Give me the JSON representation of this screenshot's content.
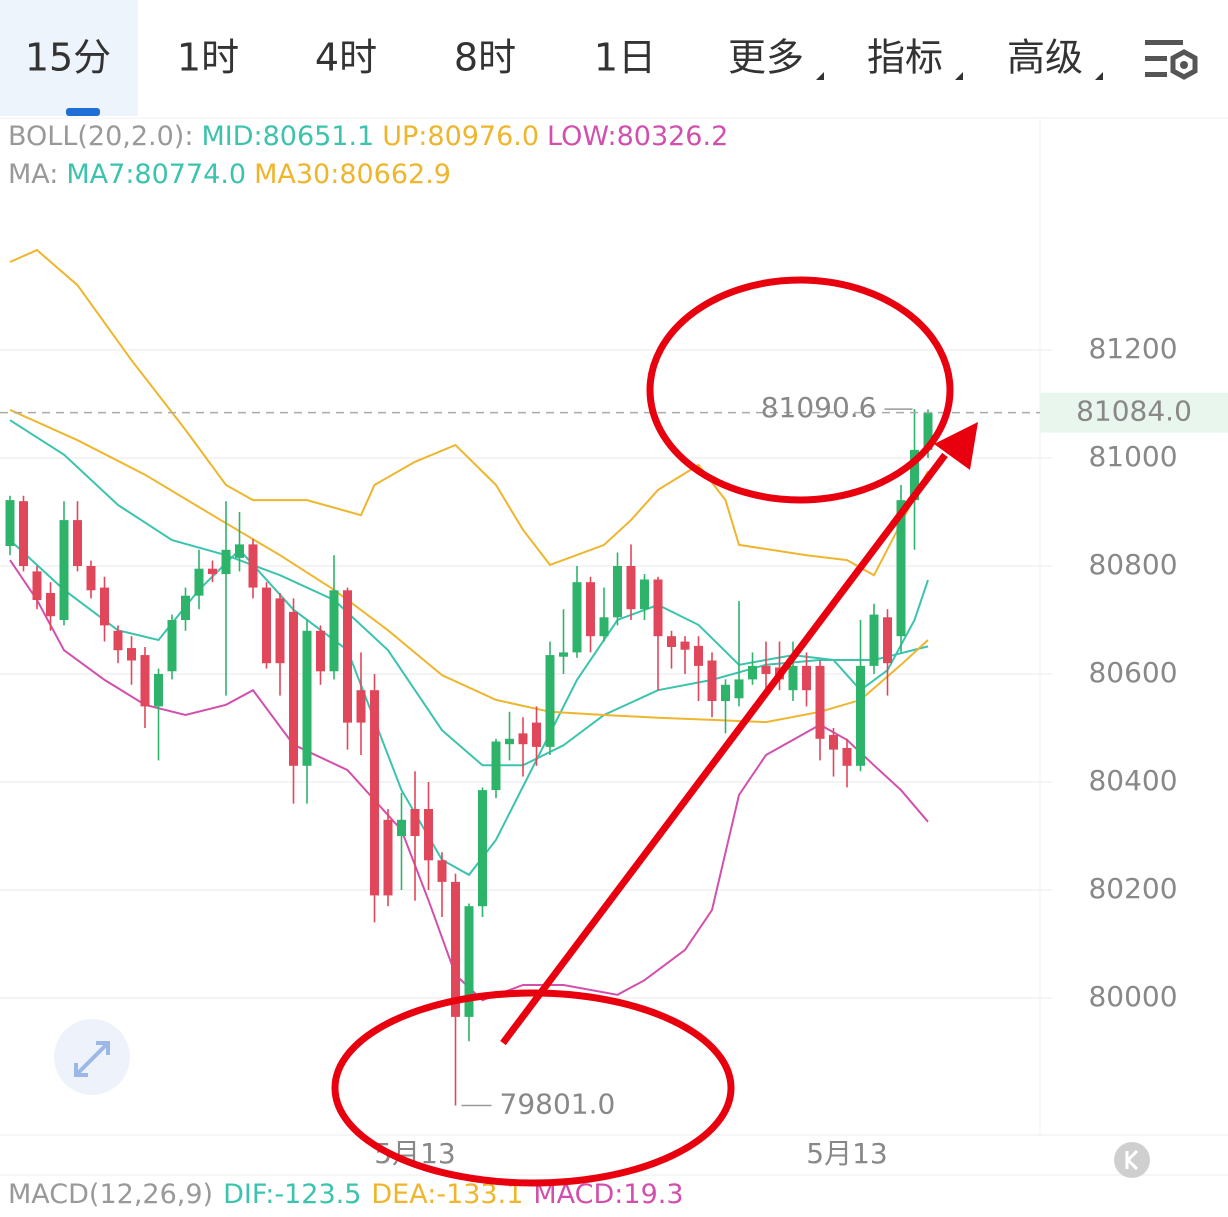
{
  "tabs": [
    "15分",
    "1时",
    "4时",
    "8时",
    "1日",
    "更多",
    "指标",
    "高级"
  ],
  "macd": {
    "label": "MACD(12,26,9)",
    "dif": "DIF:-123.5",
    "dea": "DEA:-133.1",
    "macd": "MACD:19.3"
  },
  "chart_data": {
    "type": "candlestick",
    "boll_label": "BOLL(20,2.0):",
    "ma_label": "MA:",
    "up_color": "#2db46a",
    "down_color": "#e0475a",
    "categories": [
      null,
      null,
      null,
      null,
      null,
      null,
      null,
      null,
      null,
      null,
      null,
      null,
      null,
      null,
      null,
      null,
      null,
      null,
      null,
      null,
      null,
      null,
      null,
      null,
      null,
      null,
      null,
      null,
      null,
      null,
      "5月13",
      null,
      null,
      null,
      null,
      null,
      null,
      null,
      null,
      null,
      null,
      null,
      null,
      null,
      null,
      null,
      null,
      null,
      null,
      null,
      null,
      null,
      null,
      null,
      null,
      null,
      null,
      null,
      null,
      null,
      null,
      null,
      "5月13",
      null,
      null,
      null,
      null,
      null,
      null
    ],
    "open": [
      80837,
      80920,
      80790,
      80750,
      80700,
      80885,
      80800,
      80760,
      80680,
      80648,
      80635,
      80540,
      80605,
      80700,
      80745,
      80795,
      80785,
      80815,
      80840,
      80760,
      80740,
      80715,
      80430,
      80680,
      80605,
      80755,
      80570,
      80570,
      80330,
      80300,
      80350,
      80350,
      80255,
      80215,
      79965,
      80170,
      80385,
      80470,
      80490,
      80510,
      80465,
      80632,
      80640,
      80770,
      80670,
      80705,
      80800,
      80720,
      80775,
      80670,
      80660,
      80652,
      80625,
      80550,
      80555,
      80590,
      80615,
      80612,
      80570,
      80615,
      80615,
      80487,
      80463,
      80430,
      80615,
      80705,
      80670,
      80922,
      81015
    ],
    "high": [
      80930,
      80930,
      80800,
      80770,
      80920,
      80920,
      80810,
      80780,
      80690,
      80670,
      80650,
      80610,
      80710,
      80760,
      80830,
      80810,
      80920,
      80900,
      80850,
      80770,
      80750,
      80740,
      80700,
      80690,
      80820,
      80760,
      80640,
      80600,
      80350,
      80380,
      80420,
      80400,
      80270,
      80230,
      80175,
      80390,
      80480,
      80530,
      80520,
      80540,
      80660,
      80720,
      80800,
      80780,
      80760,
      80825,
      80840,
      80785,
      80780,
      80680,
      80670,
      80670,
      80640,
      80590,
      80735,
      80640,
      80660,
      80660,
      80660,
      80640,
      80625,
      80500,
      80480,
      80700,
      80730,
      80720,
      80950,
      81090.6,
      81090
    ],
    "low": [
      80820,
      80790,
      80720,
      80680,
      80690,
      80790,
      80740,
      80660,
      80620,
      80580,
      80500,
      80440,
      80590,
      80680,
      80720,
      80770,
      80560,
      80790,
      80740,
      80610,
      80560,
      80360,
      80360,
      80580,
      80590,
      80460,
      80450,
      80140,
      80170,
      80200,
      80180,
      80200,
      80150,
      79801,
      79920,
      80150,
      80370,
      80440,
      80410,
      80430,
      80450,
      80600,
      80630,
      80640,
      80660,
      80690,
      80700,
      80700,
      80570,
      80610,
      80600,
      80550,
      80520,
      80490,
      80540,
      80580,
      80570,
      80570,
      80550,
      80540,
      80440,
      80410,
      80390,
      80420,
      80600,
      80560,
      80640,
      80830,
      81000
    ],
    "close": [
      80922,
      80800,
      80737,
      80707,
      80885,
      80800,
      80755,
      80690,
      80644,
      80625,
      80540,
      80600,
      80700,
      80745,
      80795,
      80785,
      80830,
      80840,
      80760,
      80620,
      80620,
      80430,
      80680,
      80605,
      80755,
      80510,
      80510,
      80190,
      80190,
      80330,
      80300,
      80255,
      80215,
      79965,
      80170,
      80385,
      80475,
      80480,
      80470,
      80465,
      80635,
      80640,
      80770,
      80670,
      80705,
      80800,
      80720,
      80775,
      80670,
      80650,
      80645,
      80615,
      80550,
      80580,
      80590,
      80615,
      80600,
      80590,
      80615,
      80570,
      80480,
      80460,
      80430,
      80615,
      80710,
      80620,
      80922,
      81015,
      81084
    ],
    "lines": [
      {
        "label": "MID:80651.1",
        "color": "#3cc3ad",
        "group": "boll",
        "x": [
          0,
          4,
          8,
          12,
          16,
          20,
          24,
          28,
          32,
          35,
          38,
          41,
          44,
          48,
          52,
          56,
          60,
          64,
          68
        ],
        "values": [
          81070,
          81006,
          80913,
          80848,
          80820,
          80783,
          80737,
          80644,
          80496,
          80431,
          80431,
          80468,
          80524,
          80570,
          80589,
          80617,
          80626,
          80626,
          80651.1
        ]
      },
      {
        "label": "UP:80976.0",
        "color": "#efb52c",
        "group": "boll",
        "x": [
          0,
          2,
          5,
          9,
          13,
          16,
          18,
          22,
          26,
          27,
          30,
          33,
          36,
          38,
          40,
          44,
          46,
          48,
          51,
          53,
          54,
          59,
          62,
          64,
          68
        ],
        "values": [
          81363,
          81385,
          81320,
          81181,
          81052,
          80950,
          80922,
          80922,
          80894,
          80950,
          80993,
          81024,
          80950,
          80867,
          80802,
          80839,
          80885,
          80941,
          80987,
          80922,
          80839,
          80820,
          80811,
          80783,
          80976
        ]
      },
      {
        "label": "LOW:80326.2",
        "color": "#d24fae",
        "group": "boll",
        "x": [
          0,
          2,
          4,
          7,
          10,
          13,
          16,
          18,
          21,
          25,
          29,
          31,
          33,
          35,
          38,
          41,
          45,
          47,
          50,
          52,
          54,
          56,
          58,
          60,
          62,
          64,
          66,
          68
        ],
        "values": [
          80811,
          80737,
          80644,
          80589,
          80543,
          80524,
          80543,
          80570,
          80469,
          80422,
          80311,
          80181,
          80043,
          79996,
          80024,
          80024,
          80006,
          80033,
          80089,
          80163,
          80376,
          80450,
          80478,
          80506,
          80478,
          80431,
          80385,
          80326.2
        ]
      },
      {
        "label": "MA7:80774.0",
        "color": "#3cc3ad",
        "group": "ma",
        "x": [
          0,
          4,
          8,
          11,
          14,
          17,
          21,
          25,
          29,
          32,
          34,
          36,
          39,
          42,
          45,
          48,
          51,
          54,
          58,
          61,
          63,
          65,
          67,
          68
        ],
        "values": [
          80848,
          80756,
          80681,
          80663,
          80756,
          80830,
          80719,
          80644,
          80385,
          80256,
          80228,
          80293,
          80441,
          80589,
          80700,
          80728,
          80691,
          80617,
          80635,
          80626,
          80570,
          80607,
          80700,
          80774
        ]
      },
      {
        "label": "MA30:80662.9",
        "color": "#efb52c",
        "group": "ma",
        "x": [
          0,
          5,
          10,
          15,
          20,
          24,
          28,
          32,
          36,
          40,
          44,
          48,
          52,
          56,
          60,
          63,
          66,
          68
        ],
        "values": [
          81089,
          81033,
          80969,
          80894,
          80820,
          80756,
          80681,
          80598,
          80552,
          80530,
          80524,
          80519,
          80515,
          80511,
          80530,
          80552,
          80617,
          80662.9
        ]
      }
    ],
    "ylim": [
      79746.3,
      81629.6
    ],
    "yticks": [
      80000,
      80200,
      80400,
      80600,
      80800,
      81000,
      81200
    ],
    "grid": true,
    "price_labels": {
      "high": 81090.6,
      "low": {
        "value": 79801,
        "label": "79801.0"
      },
      "last": {
        "value": 81084,
        "label": "81084.0"
      }
    }
  }
}
